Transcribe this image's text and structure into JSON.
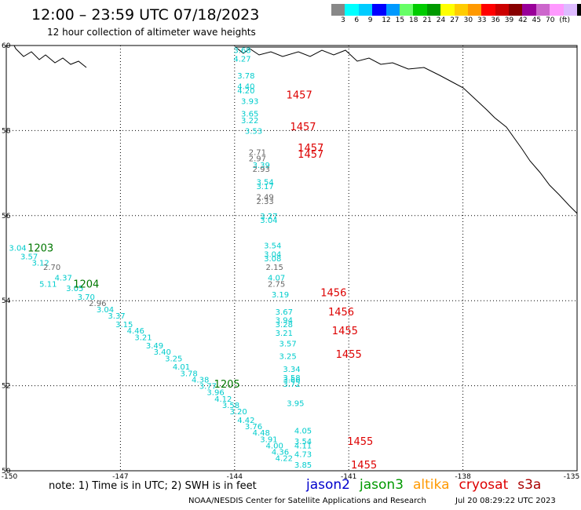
{
  "title": "12:00 – 23:59 UTC 07/18/2023",
  "subtitle": "12 hour collection of altimeter wave heights",
  "scale": {
    "colors": [
      "#888888",
      "#00ffff",
      "#00ccff",
      "#0000ff",
      "#0099ff",
      "#66ff66",
      "#00cc00",
      "#009900",
      "#ffff00",
      "#ffcc00",
      "#ff9900",
      "#ff0000",
      "#cc0000",
      "#880000",
      "#990099",
      "#cc66cc",
      "#ff99ff",
      "#ddbbff",
      "#000000"
    ],
    "labels": [
      "3",
      "6",
      "9",
      "12",
      "15",
      "18",
      "21",
      "24",
      "27",
      "30",
      "33",
      "36",
      "39",
      "42",
      "45",
      "70",
      "(ft)"
    ]
  },
  "axes": {
    "lat_ticks": [
      "60",
      "58",
      "56",
      "54",
      "52",
      "50"
    ],
    "lon_ticks": [
      "-150",
      "-147",
      "-144",
      "-141",
      "-138",
      "-135"
    ]
  },
  "chart_data": {
    "type": "scatter",
    "x_range": [
      -150,
      -135
    ],
    "y_range": [
      50,
      60
    ],
    "grid": true,
    "series": [
      {
        "name": "jason2",
        "color": "#0000ff",
        "points": []
      },
      {
        "name": "jason3",
        "color": "#009900",
        "points": []
      },
      {
        "name": "altika",
        "color": "#ff9900",
        "points": []
      },
      {
        "name": "cryosat",
        "color": "#ff0000",
        "points": []
      },
      {
        "name": "s3a",
        "color": "#cc0000",
        "points": []
      }
    ],
    "wave_heights": [
      {
        "lat": 59.9,
        "lon": -143.8,
        "value": "3.68",
        "color": "#00cccc"
      },
      {
        "lat": 59.7,
        "lon": -143.8,
        "value": "4.27",
        "color": "#00cccc"
      },
      {
        "lat": 59.3,
        "lon": -143.7,
        "value": "3.78",
        "color": "#00cccc"
      },
      {
        "lat": 59.05,
        "lon": -143.7,
        "value": "4.40",
        "color": "#00cccc"
      },
      {
        "lat": 58.95,
        "lon": -143.7,
        "value": "4.20",
        "color": "#00cccc"
      },
      {
        "lat": 58.7,
        "lon": -143.6,
        "value": "3.93",
        "color": "#00cccc"
      },
      {
        "lat": 58.4,
        "lon": -143.6,
        "value": "3.65",
        "color": "#00cccc"
      },
      {
        "lat": 58.25,
        "lon": -143.6,
        "value": "3.22",
        "color": "#00cccc"
      },
      {
        "lat": 58.0,
        "lon": -143.5,
        "value": "3.53",
        "color": "#00cccc"
      },
      {
        "lat": 57.5,
        "lon": -143.4,
        "value": "2.71",
        "color": "#666666"
      },
      {
        "lat": 57.35,
        "lon": -143.4,
        "value": "2.97",
        "color": "#666666"
      },
      {
        "lat": 57.2,
        "lon": -143.3,
        "value": "3.39",
        "color": "#00cccc"
      },
      {
        "lat": 57.1,
        "lon": -143.3,
        "value": "2.93",
        "color": "#666666"
      },
      {
        "lat": 56.8,
        "lon": -143.2,
        "value": "3.54",
        "color": "#00cccc"
      },
      {
        "lat": 56.7,
        "lon": -143.2,
        "value": "3.17",
        "color": "#00cccc"
      },
      {
        "lat": 56.45,
        "lon": -143.2,
        "value": "2.49",
        "color": "#666666"
      },
      {
        "lat": 56.35,
        "lon": -143.2,
        "value": "2.33",
        "color": "#666666"
      },
      {
        "lat": 56.0,
        "lon": -143.1,
        "value": "3.27",
        "color": "#00cccc"
      },
      {
        "lat": 55.9,
        "lon": -143.1,
        "value": "3.04",
        "color": "#00cccc"
      },
      {
        "lat": 55.3,
        "lon": -143.0,
        "value": "3.54",
        "color": "#00cccc"
      },
      {
        "lat": 55.1,
        "lon": -143.0,
        "value": "3.04",
        "color": "#00cccc"
      },
      {
        "lat": 55.0,
        "lon": -143.0,
        "value": "3.08",
        "color": "#00cccc"
      },
      {
        "lat": 54.8,
        "lon": -142.95,
        "value": "2.15",
        "color": "#666666"
      },
      {
        "lat": 54.55,
        "lon": -142.9,
        "value": "4.07",
        "color": "#00cccc"
      },
      {
        "lat": 54.4,
        "lon": -142.9,
        "value": "2.75",
        "color": "#666666"
      },
      {
        "lat": 54.15,
        "lon": -142.8,
        "value": "3.19",
        "color": "#00cccc"
      },
      {
        "lat": 53.75,
        "lon": -142.7,
        "value": "3.67",
        "color": "#00cccc"
      },
      {
        "lat": 53.55,
        "lon": -142.7,
        "value": "3.94",
        "color": "#00cccc"
      },
      {
        "lat": 53.45,
        "lon": -142.7,
        "value": "3.28",
        "color": "#00cccc"
      },
      {
        "lat": 53.25,
        "lon": -142.7,
        "value": "3.21",
        "color": "#00cccc"
      },
      {
        "lat": 53.0,
        "lon": -142.6,
        "value": "3.57",
        "color": "#00cccc"
      },
      {
        "lat": 52.7,
        "lon": -142.6,
        "value": "3.25",
        "color": "#00cccc"
      },
      {
        "lat": 52.4,
        "lon": -142.5,
        "value": "3.34",
        "color": "#00cccc"
      },
      {
        "lat": 52.2,
        "lon": -142.5,
        "value": "3.58",
        "color": "#00cccc"
      },
      {
        "lat": 52.15,
        "lon": -142.5,
        "value": "3.66",
        "color": "#00cccc"
      },
      {
        "lat": 52.05,
        "lon": -142.5,
        "value": "3.72",
        "color": "#00cccc"
      },
      {
        "lat": 51.6,
        "lon": -142.4,
        "value": "3.95",
        "color": "#00cccc"
      },
      {
        "lat": 50.95,
        "lon": -142.2,
        "value": "4.05",
        "color": "#00cccc"
      },
      {
        "lat": 50.7,
        "lon": -142.2,
        "value": "3.54",
        "color": "#00cccc"
      },
      {
        "lat": 50.6,
        "lon": -142.2,
        "value": "4.11",
        "color": "#00cccc"
      },
      {
        "lat": 50.4,
        "lon": -142.2,
        "value": "4.73",
        "color": "#00cccc"
      },
      {
        "lat": 50.15,
        "lon": -142.2,
        "value": "3.85",
        "color": "#00cccc"
      },
      {
        "lat": 55.25,
        "lon": -149.7,
        "value": "3.04",
        "color": "#00cccc"
      },
      {
        "lat": 55.05,
        "lon": -149.4,
        "value": "3.57",
        "color": "#00cccc"
      },
      {
        "lat": 54.9,
        "lon": -149.1,
        "value": "3.12",
        "color": "#00cccc"
      },
      {
        "lat": 54.8,
        "lon": -148.8,
        "value": "2.70",
        "color": "#666666"
      },
      {
        "lat": 54.55,
        "lon": -148.5,
        "value": "4.37",
        "color": "#00cccc"
      },
      {
        "lat": 54.4,
        "lon": -148.9,
        "value": "5.11",
        "color": "#00cccc"
      },
      {
        "lat": 54.3,
        "lon": -148.2,
        "value": "3.05",
        "color": "#00cccc"
      },
      {
        "lat": 54.1,
        "lon": -147.9,
        "value": "3.70",
        "color": "#00cccc"
      },
      {
        "lat": 53.95,
        "lon": -147.6,
        "value": "2.96",
        "color": "#666666"
      },
      {
        "lat": 53.8,
        "lon": -147.4,
        "value": "3.04",
        "color": "#00cccc"
      },
      {
        "lat": 53.65,
        "lon": -147.1,
        "value": "3.37",
        "color": "#00cccc"
      },
      {
        "lat": 53.45,
        "lon": -146.9,
        "value": "3.15",
        "color": "#00cccc"
      },
      {
        "lat": 53.3,
        "lon": -146.6,
        "value": "4.46",
        "color": "#00cccc"
      },
      {
        "lat": 53.15,
        "lon": -146.4,
        "value": "3.21",
        "color": "#00cccc"
      },
      {
        "lat": 52.95,
        "lon": -146.1,
        "value": "3.49",
        "color": "#00cccc"
      },
      {
        "lat": 52.8,
        "lon": -145.9,
        "value": "3.40",
        "color": "#00cccc"
      },
      {
        "lat": 52.65,
        "lon": -145.6,
        "value": "3.25",
        "color": "#00cccc"
      },
      {
        "lat": 52.45,
        "lon": -145.4,
        "value": "4.01",
        "color": "#00cccc"
      },
      {
        "lat": 52.3,
        "lon": -145.2,
        "value": "3.78",
        "color": "#00cccc"
      },
      {
        "lat": 52.15,
        "lon": -144.9,
        "value": "4.38",
        "color": "#00cccc"
      },
      {
        "lat": 52.0,
        "lon": -144.7,
        "value": "3.77",
        "color": "#00cccc"
      },
      {
        "lat": 51.85,
        "lon": -144.5,
        "value": "3.96",
        "color": "#00cccc"
      },
      {
        "lat": 51.7,
        "lon": -144.3,
        "value": "4.12",
        "color": "#00cccc"
      },
      {
        "lat": 51.55,
        "lon": -144.1,
        "value": "3.58",
        "color": "#00cccc"
      },
      {
        "lat": 51.4,
        "lon": -143.9,
        "value": "3.20",
        "color": "#00cccc"
      },
      {
        "lat": 51.2,
        "lon": -143.7,
        "value": "4.42",
        "color": "#00cccc"
      },
      {
        "lat": 51.05,
        "lon": -143.5,
        "value": "3.76",
        "color": "#00cccc"
      },
      {
        "lat": 50.9,
        "lon": -143.3,
        "value": "4.48",
        "color": "#00cccc"
      },
      {
        "lat": 50.75,
        "lon": -143.1,
        "value": "3.91",
        "color": "#00cccc"
      },
      {
        "lat": 50.6,
        "lon": -142.95,
        "value": "4.00",
        "color": "#00cccc"
      },
      {
        "lat": 50.45,
        "lon": -142.8,
        "value": "4.36",
        "color": "#00cccc"
      },
      {
        "lat": 50.3,
        "lon": -142.7,
        "value": "4.22",
        "color": "#00cccc"
      }
    ],
    "time_labels": [
      {
        "lat": 58.85,
        "lon": -142.3,
        "value": "1457",
        "color": "#dd0000"
      },
      {
        "lat": 58.1,
        "lon": -142.2,
        "value": "1457",
        "color": "#dd0000"
      },
      {
        "lat": 57.6,
        "lon": -142.0,
        "value": "1457",
        "color": "#dd0000"
      },
      {
        "lat": 57.45,
        "lon": -142.0,
        "value": "1457",
        "color": "#dd0000"
      },
      {
        "lat": 54.2,
        "lon": -141.4,
        "value": "1456",
        "color": "#dd0000"
      },
      {
        "lat": 53.75,
        "lon": -141.2,
        "value": "1456",
        "color": "#dd0000"
      },
      {
        "lat": 53.3,
        "lon": -141.1,
        "value": "1455",
        "color": "#dd0000"
      },
      {
        "lat": 52.75,
        "lon": -141.0,
        "value": "1455",
        "color": "#dd0000"
      },
      {
        "lat": 50.7,
        "lon": -140.7,
        "value": "1455",
        "color": "#dd0000"
      },
      {
        "lat": 50.15,
        "lon": -140.6,
        "value": "1455",
        "color": "#dd0000"
      },
      {
        "lat": 55.25,
        "lon": -149.1,
        "value": "1203",
        "color": "#007700"
      },
      {
        "lat": 54.4,
        "lon": -147.9,
        "value": "1204",
        "color": "#007700"
      },
      {
        "lat": 52.05,
        "lon": -144.2,
        "value": "1205",
        "color": "#007700"
      }
    ]
  },
  "note": "note: 1) Time is in UTC; 2) SWH is in feet",
  "legend": [
    {
      "label": "jason2",
      "color": "#0000cc"
    },
    {
      "label": "jason3",
      "color": "#009900"
    },
    {
      "label": "altika",
      "color": "#ff9900"
    },
    {
      "label": "cryosat",
      "color": "#dd0000"
    },
    {
      "label": "s3a",
      "color": "#aa0000"
    }
  ],
  "footer": "NOAA/NESDIS Center for Satellite Applications and Research",
  "footer_time": "Jul 20 08:29:22 UTC 2023"
}
